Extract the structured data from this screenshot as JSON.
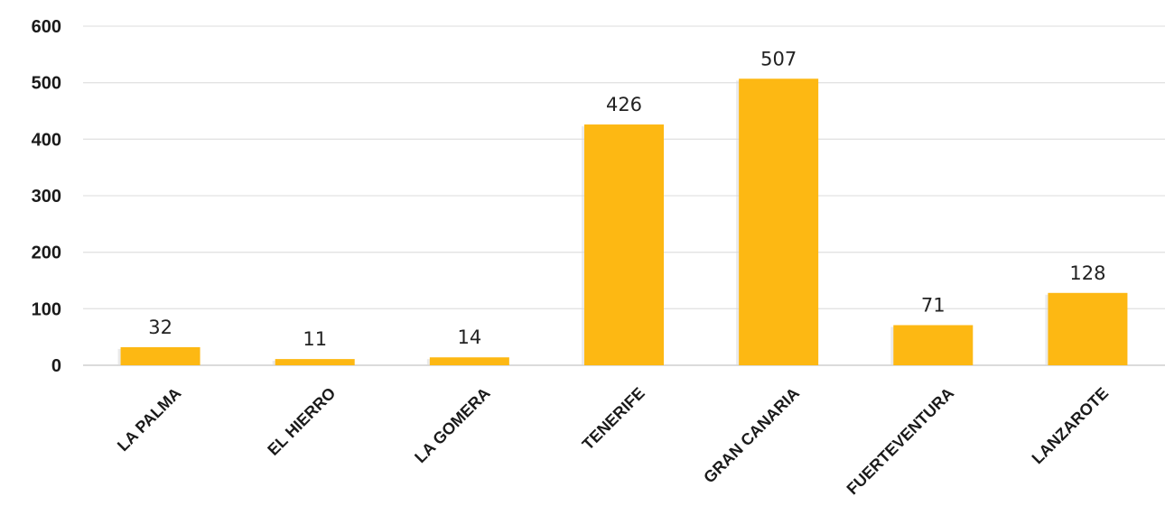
{
  "chart_data": {
    "type": "bar",
    "categories": [
      "LA PALMA",
      "EL HIERRO",
      "LA GOMERA",
      "TENERIFE",
      "GRAN CANARIA",
      "FUERTEVENTURA",
      "LANZAROTE"
    ],
    "values": [
      32,
      11,
      14,
      426,
      507,
      71,
      128
    ],
    "data_labels": [
      "32",
      "11",
      "14",
      "426",
      "507",
      "71",
      "128"
    ],
    "y_ticks": [
      0,
      100,
      200,
      300,
      400,
      500,
      600
    ],
    "ylim": [
      0,
      600
    ],
    "grid": true,
    "legend": "none",
    "title": "",
    "xlabel": "",
    "ylabel": "",
    "colors": {
      "bar": "#FDB813",
      "bar_shadow": "#d8d8d8",
      "grid": "#e3e3e3",
      "text": "#1a1a1a"
    }
  }
}
